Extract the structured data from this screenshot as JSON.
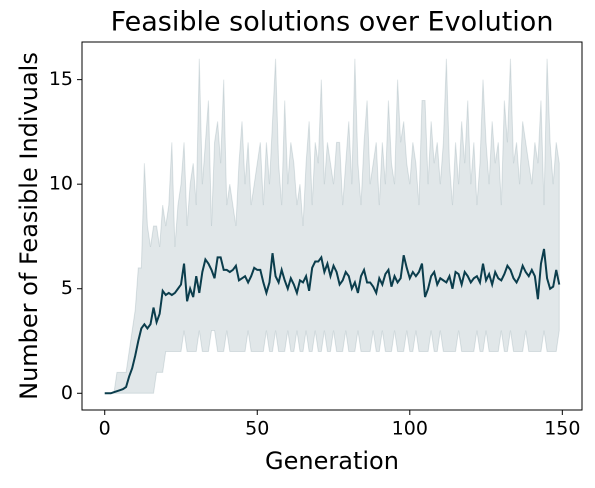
{
  "chart_data": {
    "type": "line_band",
    "title": "Feasible solutions over Evolution",
    "xlabel": "Generation",
    "ylabel": "Number of Feasible Indivuals",
    "xlim": [
      -7.45,
      156.45
    ],
    "xticks": [
      0,
      50,
      100,
      150
    ],
    "ylim": [
      -0.8,
      16.8
    ],
    "yticks": [
      0,
      5,
      10,
      15
    ],
    "grid": false,
    "x": [
      0,
      1,
      2,
      3,
      4,
      5,
      6,
      7,
      8,
      9,
      10,
      11,
      12,
      13,
      14,
      15,
      16,
      17,
      18,
      19,
      20,
      21,
      22,
      23,
      24,
      25,
      26,
      27,
      28,
      29,
      30,
      31,
      32,
      33,
      34,
      35,
      36,
      37,
      38,
      39,
      40,
      41,
      42,
      43,
      44,
      45,
      46,
      47,
      48,
      49,
      50,
      51,
      52,
      53,
      54,
      55,
      56,
      57,
      58,
      59,
      60,
      61,
      62,
      63,
      64,
      65,
      66,
      67,
      68,
      69,
      70,
      71,
      72,
      73,
      74,
      75,
      76,
      77,
      78,
      79,
      80,
      81,
      82,
      83,
      84,
      85,
      86,
      87,
      88,
      89,
      90,
      91,
      92,
      93,
      94,
      95,
      96,
      97,
      98,
      99,
      100,
      101,
      102,
      103,
      104,
      105,
      106,
      107,
      108,
      109,
      110,
      111,
      112,
      113,
      114,
      115,
      116,
      117,
      118,
      119,
      120,
      121,
      122,
      123,
      124,
      125,
      126,
      127,
      128,
      129,
      130,
      131,
      132,
      133,
      134,
      135,
      136,
      137,
      138,
      139,
      140,
      141,
      142,
      143,
      144,
      145,
      146,
      147,
      148,
      149
    ],
    "series": [
      {
        "color": "#0b3d4c",
        "values": [
          0,
          0,
          0,
          0.05,
          0.1,
          0.15,
          0.2,
          0.3,
          0.8,
          1.2,
          1.8,
          2.5,
          3.1,
          3.3,
          3.1,
          3.3,
          4.1,
          3.4,
          3.8,
          4.9,
          4.7,
          4.8,
          4.7,
          4.8,
          5.0,
          5.2,
          6.2,
          4.4,
          5.0,
          4.6,
          5.6,
          4.8,
          5.8,
          6.4,
          6.2,
          5.9,
          5.5,
          6.5,
          6.5,
          5.9,
          5.9,
          5.8,
          5.9,
          6.1,
          5.4,
          5.5,
          5.6,
          5.3,
          5.6,
          6.0,
          5.9,
          5.9,
          5.3,
          4.8,
          5.3,
          6.7,
          5.6,
          5.3,
          5.9,
          5.4,
          5.0,
          5.5,
          5.2,
          4.8,
          5.4,
          5.3,
          5.6,
          4.9,
          6.0,
          6.3,
          6.3,
          6.5,
          5.8,
          6.2,
          5.6,
          6.1,
          5.8,
          5.2,
          5.4,
          5.8,
          5.6,
          5.0,
          5.3,
          4.8,
          5.6,
          5.9,
          5.3,
          5.3,
          5.1,
          4.8,
          5.5,
          5.2,
          5.7,
          5.9,
          5.1,
          5.6,
          5.3,
          5.5,
          6.6,
          6.0,
          5.5,
          5.8,
          5.6,
          5.8,
          6.2,
          4.6,
          5.0,
          5.6,
          5.8,
          5.2,
          5.5,
          5.4,
          5.3,
          5.6,
          5.0,
          5.8,
          5.7,
          5.2,
          5.8,
          5.6,
          5.3,
          5.5,
          5.6,
          5.3,
          6.2,
          5.4,
          5.7,
          5.2,
          5.8,
          5.5,
          5.4,
          5.7,
          6.1,
          5.9,
          5.5,
          5.3,
          5.6,
          6.1,
          5.8,
          5.6,
          5.9,
          5.6,
          4.5,
          6.2,
          6.9,
          5.5,
          5.0,
          5.1,
          5.9,
          5.2
        ]
      }
    ],
    "band": {
      "color": "#0b3d4c",
      "lower": [
        0,
        0,
        0,
        0,
        0,
        0,
        0,
        0,
        0,
        0,
        0,
        0,
        0,
        0,
        0,
        0,
        0,
        1,
        1,
        1,
        2,
        2,
        2,
        2,
        2,
        2,
        3,
        2,
        2,
        2,
        2,
        3,
        2,
        2,
        2,
        3,
        3,
        2,
        2,
        2,
        3,
        2,
        2,
        2,
        2,
        2,
        2,
        3,
        2,
        2,
        2,
        2,
        2,
        3,
        2,
        2,
        3,
        2,
        2,
        2,
        3,
        2,
        2,
        3,
        2,
        2,
        3,
        2,
        2,
        3,
        2,
        2,
        3,
        2,
        2,
        3,
        2,
        2,
        2,
        3,
        2,
        2,
        2,
        3,
        2,
        2,
        2,
        2,
        3,
        2,
        2,
        3,
        2,
        2,
        2,
        3,
        2,
        2,
        2,
        3,
        2,
        2,
        3,
        2,
        2,
        2,
        2,
        3,
        2,
        2,
        3,
        2,
        2,
        2,
        2,
        2,
        3,
        2,
        2,
        2,
        2,
        2,
        3,
        2,
        2,
        3,
        2,
        2,
        2,
        2,
        3,
        2,
        2,
        3,
        2,
        2,
        2,
        2,
        3,
        2,
        2,
        2,
        2,
        2,
        3,
        2,
        2,
        2,
        2,
        3
      ],
      "upper": [
        0,
        0,
        0,
        0,
        1,
        1,
        1,
        1,
        2,
        3,
        4,
        6,
        6,
        11,
        8,
        7,
        8,
        8,
        7,
        9,
        8,
        9,
        12,
        7,
        9,
        10,
        12,
        8,
        10,
        11,
        9,
        16,
        10,
        12,
        14,
        8,
        12,
        13,
        11,
        15,
        9,
        10,
        9,
        8,
        11,
        13,
        10,
        12,
        9,
        10,
        11,
        12,
        9,
        12,
        10,
        13,
        16,
        11,
        9,
        14,
        10,
        12,
        11,
        9,
        10,
        8,
        11,
        13,
        9,
        12,
        11,
        15,
        10,
        12,
        11,
        10,
        12,
        12,
        9,
        11,
        13,
        10,
        16,
        11,
        9,
        12,
        14,
        10,
        11,
        12,
        9,
        12,
        10,
        14,
        11,
        10,
        15,
        12,
        13,
        11,
        10,
        12,
        11,
        9,
        14,
        14,
        10,
        13,
        11,
        12,
        10,
        12,
        16,
        11,
        9,
        12,
        10,
        13,
        11,
        14,
        10,
        12,
        9,
        11,
        15,
        12,
        10,
        13,
        11,
        12,
        9,
        14,
        12,
        16,
        11,
        12,
        10,
        13,
        12,
        11,
        10,
        12,
        11,
        14,
        9,
        16,
        12,
        10,
        12,
        11
      ]
    }
  }
}
